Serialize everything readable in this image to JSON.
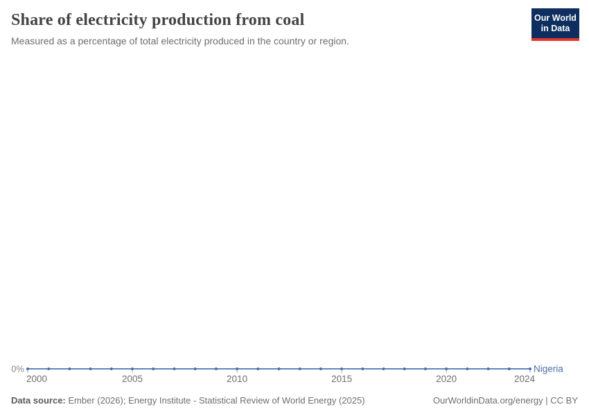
{
  "header": {
    "title": "Share of electricity production from coal",
    "subtitle": "Measured as a percentage of total electricity produced in the country or region.",
    "logo": {
      "line1": "Our World",
      "line2": "in Data"
    }
  },
  "chart_data": {
    "type": "line",
    "title": "Share of electricity production from coal",
    "xlabel": "",
    "ylabel": "",
    "x": [
      2000,
      2001,
      2002,
      2003,
      2004,
      2005,
      2006,
      2007,
      2008,
      2009,
      2010,
      2011,
      2012,
      2013,
      2014,
      2015,
      2016,
      2017,
      2018,
      2019,
      2020,
      2021,
      2022,
      2023,
      2024
    ],
    "series": [
      {
        "name": "Nigeria",
        "values": [
          0,
          0,
          0,
          0,
          0,
          0,
          0,
          0,
          0,
          0,
          0,
          0,
          0,
          0,
          0,
          0,
          0,
          0,
          0,
          0,
          0,
          0,
          0,
          0,
          0
        ]
      }
    ],
    "x_ticks": [
      2000,
      2005,
      2010,
      2015,
      2020,
      2024
    ],
    "y_tick_labels": [
      "0%"
    ],
    "legend_position": "end-of-line",
    "grid": false
  },
  "colors": {
    "line": "#4c6ea9",
    "line_stroke": "#5f85bd",
    "axis_text": "#6e6e6e",
    "y_axis_text": "#8a8a8a",
    "tick": "#adadad",
    "logo_bg": "#0d2e5e",
    "logo_stripe": "#e0362c"
  },
  "footer": {
    "datasource_label": "Data source:",
    "datasource_text": " Ember (2026); Energy Institute - Statistical Review of World Energy (2025)",
    "link_text": "OurWorldinData.org/energy",
    "license_suffix": " | CC BY"
  }
}
